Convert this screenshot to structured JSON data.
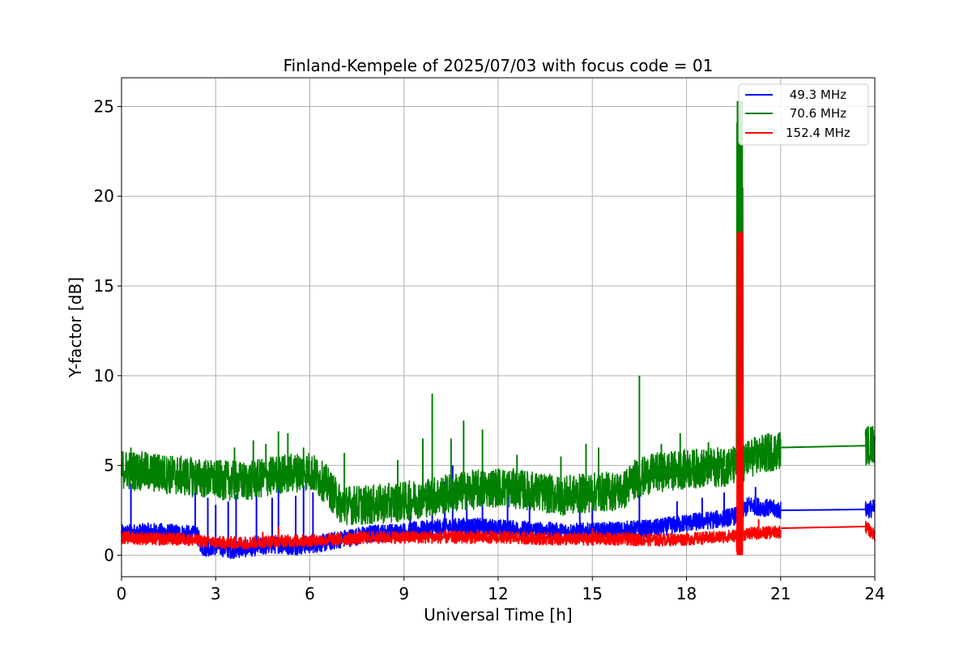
{
  "chart_data": {
    "type": "line",
    "title": "Finland-Kempele of 2025/07/03 with focus code = 01",
    "xlabel": "Universal Time [h]",
    "ylabel": "Y-factor [dB]",
    "xlim": [
      0,
      24
    ],
    "ylim": [
      -1.2,
      26.6
    ],
    "xticks": [
      0,
      3,
      6,
      9,
      12,
      15,
      18,
      21,
      24
    ],
    "yticks": [
      0,
      5,
      10,
      15,
      20,
      25
    ],
    "grid": true,
    "legend_position": "top-right",
    "series": [
      {
        "name": " 49.3 MHz",
        "color": "#0000ff",
        "points": [
          [
            0,
            1.2
          ],
          [
            1,
            1.3
          ],
          [
            2,
            1.2
          ],
          [
            2.4,
            1.1
          ],
          [
            2.6,
            0.4
          ],
          [
            3,
            0.5
          ],
          [
            3.5,
            0.3
          ],
          [
            4,
            0.4
          ],
          [
            4.5,
            0.5
          ],
          [
            5,
            0.6
          ],
          [
            5.5,
            0.5
          ],
          [
            6,
            0.6
          ],
          [
            6.5,
            0.7
          ],
          [
            7,
            0.9
          ],
          [
            8,
            1.2
          ],
          [
            9,
            1.3
          ],
          [
            10,
            1.5
          ],
          [
            11,
            1.6
          ],
          [
            12,
            1.5
          ],
          [
            13,
            1.4
          ],
          [
            14,
            1.3
          ],
          [
            15,
            1.3
          ],
          [
            16,
            1.4
          ],
          [
            17,
            1.5
          ],
          [
            18,
            1.8
          ],
          [
            19,
            2.0
          ],
          [
            19.6,
            2.2
          ],
          [
            20,
            2.8
          ],
          [
            21,
            2.5
          ],
          [
            21,
            2.5
          ],
          [
            23.7,
            2.55
          ],
          [
            24,
            2.6
          ]
        ],
        "spikes": [
          [
            0.3,
            4.0
          ],
          [
            2.35,
            3.5
          ],
          [
            2.75,
            3.2
          ],
          [
            3.0,
            2.8
          ],
          [
            3.4,
            3.0
          ],
          [
            3.65,
            3.4
          ],
          [
            4.3,
            3.6
          ],
          [
            4.8,
            3.2
          ],
          [
            5.0,
            3.8
          ],
          [
            5.55,
            3.3
          ],
          [
            5.8,
            3.9
          ],
          [
            6.1,
            3.5
          ],
          [
            9.2,
            3.3
          ],
          [
            9.9,
            3.4
          ],
          [
            10.3,
            4.1
          ],
          [
            10.55,
            5.0
          ],
          [
            11.0,
            4.0
          ],
          [
            11.5,
            3.5
          ],
          [
            12.3,
            3.4
          ],
          [
            13.0,
            3.2
          ],
          [
            14.6,
            3.6
          ],
          [
            15.0,
            3.5
          ],
          [
            16.5,
            3.8
          ],
          [
            17.7,
            3.0
          ],
          [
            18.5,
            3.2
          ],
          [
            19.2,
            3.5
          ],
          [
            20.2,
            3.8
          ]
        ],
        "noise_amplitude": 0.5
      },
      {
        "name": " 70.6 MHz",
        "color": "#008000",
        "points": [
          [
            0,
            4.8
          ],
          [
            1,
            4.6
          ],
          [
            2,
            4.4
          ],
          [
            3,
            4.2
          ],
          [
            4,
            4.1
          ],
          [
            5,
            4.5
          ],
          [
            6,
            4.7
          ],
          [
            6.5,
            4.0
          ],
          [
            7,
            2.8
          ],
          [
            8,
            2.8
          ],
          [
            9,
            3.0
          ],
          [
            10,
            3.3
          ],
          [
            11,
            3.6
          ],
          [
            12,
            3.8
          ],
          [
            13,
            3.6
          ],
          [
            14,
            3.3
          ],
          [
            15,
            3.5
          ],
          [
            16,
            3.6
          ],
          [
            16.3,
            4.2
          ],
          [
            17,
            4.6
          ],
          [
            18,
            4.8
          ],
          [
            19,
            4.9
          ],
          [
            19.6,
            5.0
          ],
          [
            20,
            5.4
          ],
          [
            21,
            5.9
          ],
          [
            21,
            6.0
          ],
          [
            23.7,
            6.1
          ],
          [
            24,
            6.2
          ]
        ],
        "spikes": [
          [
            0.3,
            6.0
          ],
          [
            1.2,
            5.6
          ],
          [
            3.6,
            6.0
          ],
          [
            4.2,
            6.4
          ],
          [
            4.6,
            6.2
          ],
          [
            5.0,
            6.9
          ],
          [
            5.3,
            6.8
          ],
          [
            5.8,
            6.0
          ],
          [
            7.1,
            5.7
          ],
          [
            8.8,
            5.3
          ],
          [
            9.6,
            6.5
          ],
          [
            9.9,
            9.0
          ],
          [
            10.5,
            6.5
          ],
          [
            10.9,
            7.5
          ],
          [
            11.5,
            7.0
          ],
          [
            12.6,
            5.6
          ],
          [
            14.0,
            5.5
          ],
          [
            14.8,
            6.2
          ],
          [
            15.2,
            6.0
          ],
          [
            16.5,
            10.0
          ],
          [
            17.2,
            6.2
          ],
          [
            17.8,
            6.8
          ],
          [
            18.7,
            6.3
          ],
          [
            19.2,
            5.9
          ],
          [
            20.8,
            6.6
          ]
        ],
        "noise_amplitude": 1.1
      },
      {
        "name": "152.4 MHz",
        "color": "#ff0000",
        "points": [
          [
            0,
            1.0
          ],
          [
            1,
            0.9
          ],
          [
            2,
            0.9
          ],
          [
            3,
            0.7
          ],
          [
            4,
            0.7
          ],
          [
            5,
            0.8
          ],
          [
            6,
            0.8
          ],
          [
            7,
            0.9
          ],
          [
            8,
            1.0
          ],
          [
            9,
            1.0
          ],
          [
            10,
            1.0
          ],
          [
            11,
            1.0
          ],
          [
            12,
            1.0
          ],
          [
            13,
            0.95
          ],
          [
            14,
            0.9
          ],
          [
            15,
            0.9
          ],
          [
            16,
            0.9
          ],
          [
            17,
            0.85
          ],
          [
            18,
            0.9
          ],
          [
            19,
            1.0
          ],
          [
            19.6,
            1.1
          ],
          [
            20,
            1.2
          ],
          [
            21,
            1.3
          ],
          [
            21,
            1.5
          ],
          [
            23.7,
            1.6
          ],
          [
            24,
            1.1
          ]
        ],
        "spikes": [
          [
            5.0,
            1.6
          ],
          [
            4.5,
            1.3
          ],
          [
            15.0,
            1.5
          ],
          [
            20.3,
            2.0
          ]
        ],
        "noise_amplitude": 0.35
      }
    ],
    "event": {
      "x_start": 19.6,
      "x_end": 19.8,
      "peaks": [
        {
          "series": 1,
          "max": 25.3,
          "min": 5.0
        },
        {
          "series": 2,
          "max": 18.0,
          "min": 0.0
        }
      ]
    }
  }
}
